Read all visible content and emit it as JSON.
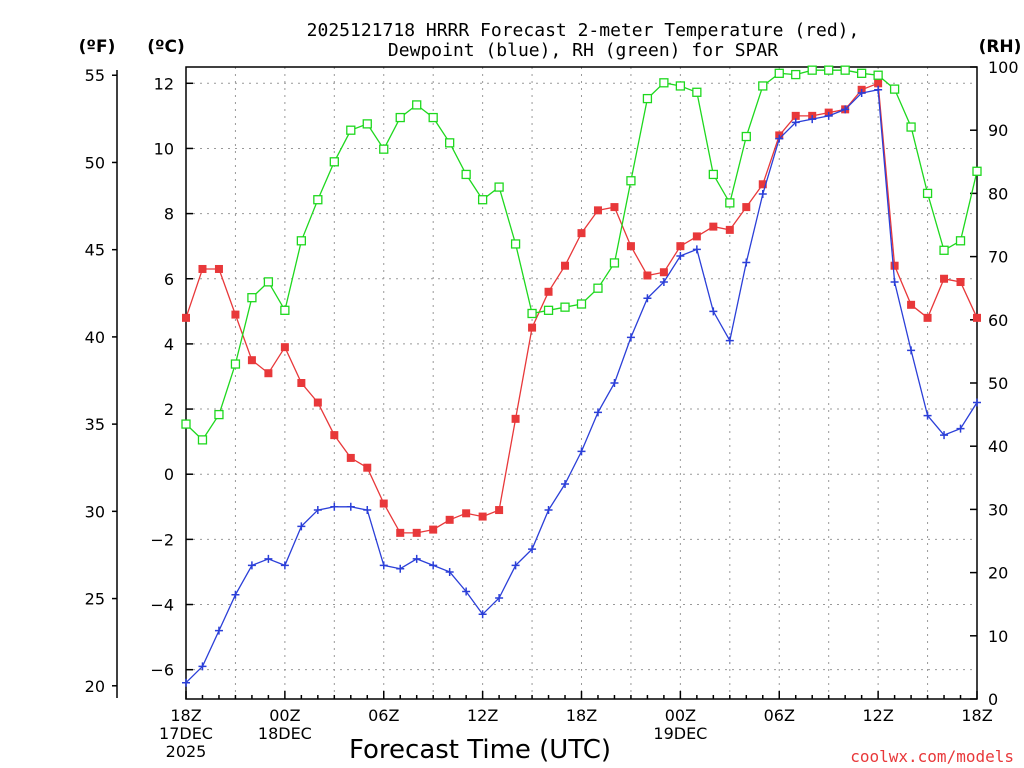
{
  "chart_data": {
    "type": "line",
    "title_lines": [
      "2025121718 HRRR Forecast 2-meter Temperature (red),",
      "Dewpoint (blue), RH (green) for SPAR"
    ],
    "units": {
      "fahrenheit": "(ºF)",
      "celsius": "(ºC)",
      "rh": "(RH)"
    },
    "xlabel": "Forecast Time (UTC)",
    "credit": "coolwx.com/models",
    "x": [
      0,
      1,
      2,
      3,
      4,
      5,
      6,
      7,
      8,
      9,
      10,
      11,
      12,
      13,
      14,
      15,
      16,
      17,
      18,
      19,
      20,
      21,
      22,
      23,
      24,
      25,
      26,
      27,
      28,
      29,
      30,
      31,
      32,
      33,
      34,
      35,
      36,
      37,
      38,
      39,
      40,
      41,
      42,
      43,
      44,
      45,
      46,
      47,
      48
    ],
    "xlim": [
      0,
      48
    ],
    "x_ticks": [
      {
        "x": 0,
        "lines": [
          "18Z",
          "17DEC",
          "2025"
        ]
      },
      {
        "x": 6,
        "lines": [
          "00Z",
          "18DEC"
        ]
      },
      {
        "x": 12,
        "lines": [
          "06Z"
        ]
      },
      {
        "x": 18,
        "lines": [
          "12Z"
        ]
      },
      {
        "x": 24,
        "lines": [
          "18Z"
        ]
      },
      {
        "x": 30,
        "lines": [
          "00Z",
          "19DEC"
        ]
      },
      {
        "x": 36,
        "lines": [
          "06Z"
        ]
      },
      {
        "x": 42,
        "lines": [
          "12Z"
        ]
      },
      {
        "x": 48,
        "lines": [
          "18Z"
        ]
      }
    ],
    "celsius_axis": {
      "ylim": [
        -6.9,
        12.5
      ],
      "ticks": [
        -6,
        -4,
        -2,
        0,
        2,
        4,
        6,
        8,
        10,
        12
      ]
    },
    "fahrenheit_axis": {
      "ylim": [
        19.3,
        55.3
      ],
      "ticks": [
        20,
        25,
        30,
        35,
        40,
        45,
        50,
        55
      ]
    },
    "rh_axis": {
      "ylim": [
        0,
        100
      ],
      "ticks": [
        0,
        10,
        20,
        30,
        40,
        50,
        60,
        70,
        80,
        90,
        100
      ]
    },
    "series": [
      {
        "name": "Temperature",
        "axis": "celsius",
        "color": "#e8383a",
        "marker": "filled-square",
        "values": [
          4.8,
          6.3,
          6.3,
          4.9,
          3.5,
          3.1,
          3.9,
          2.8,
          2.2,
          1.2,
          0.5,
          0.2,
          -0.9,
          -1.8,
          -1.8,
          -1.7,
          -1.4,
          -1.2,
          -1.3,
          -1.1,
          1.7,
          4.5,
          5.6,
          6.4,
          7.4,
          8.1,
          8.2,
          7.0,
          6.1,
          6.2,
          7.0,
          7.3,
          7.6,
          7.5,
          8.2,
          8.9,
          10.4,
          11.0,
          11.0,
          11.1,
          11.2,
          11.8,
          12.0,
          6.4,
          5.2,
          4.8,
          6.0,
          5.9,
          4.8
        ]
      },
      {
        "name": "Dewpoint",
        "axis": "celsius",
        "color": "#2b3fd8",
        "marker": "plus",
        "values": [
          -6.4,
          -5.9,
          -4.8,
          -3.7,
          -2.8,
          -2.6,
          -2.8,
          -1.6,
          -1.1,
          -1.0,
          -1.0,
          -1.1,
          -2.8,
          -2.9,
          -2.6,
          -2.8,
          -3.0,
          -3.6,
          -4.3,
          -3.8,
          -2.8,
          -2.3,
          -1.1,
          -0.3,
          0.7,
          1.9,
          2.8,
          4.2,
          5.4,
          5.9,
          6.7,
          6.9,
          5.0,
          4.1,
          6.5,
          8.6,
          10.3,
          10.8,
          10.9,
          11.0,
          11.2,
          11.7,
          11.8,
          5.9,
          3.8,
          1.8,
          1.2,
          1.4,
          2.2
        ]
      },
      {
        "name": "Relative Humidity",
        "axis": "rh",
        "color": "#1ed81e",
        "marker": "open-square",
        "values": [
          43.5,
          41.0,
          45.0,
          53.0,
          63.5,
          66.0,
          61.5,
          72.5,
          79.0,
          85.0,
          90.0,
          91.0,
          87.0,
          92.0,
          94.0,
          92.0,
          88.0,
          83.0,
          79.0,
          81.0,
          72.0,
          61.0,
          61.5,
          62.0,
          62.5,
          65.0,
          69.0,
          82.0,
          95.0,
          97.5,
          97.0,
          96.0,
          83.0,
          78.5,
          89.0,
          97.0,
          99.0,
          98.8,
          99.5,
          99.5,
          99.5,
          99.0,
          98.7,
          96.5,
          90.5,
          80.0,
          71.0,
          72.5,
          83.5
        ]
      }
    ]
  }
}
